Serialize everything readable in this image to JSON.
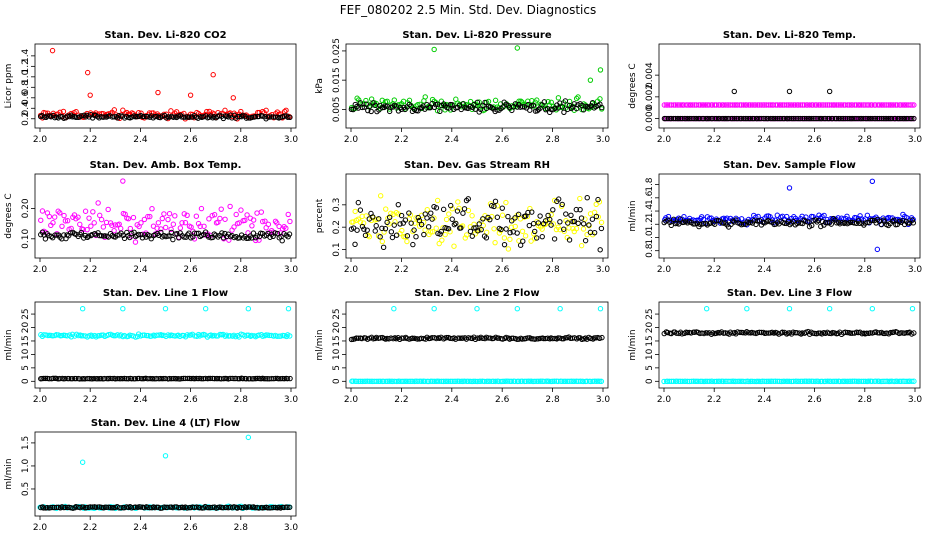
{
  "figure_title": "FEF_080202  2.5 Min. Std. Dev. Diagnostics",
  "colors": {
    "black": "#000000",
    "red": "#ff0000",
    "green": "#00cc00",
    "magenta": "#ff00ff",
    "yellow": "#ffff00",
    "blue": "#0000ff",
    "cyan": "#00ffff"
  },
  "chart_data": [
    {
      "type": "scatter",
      "title": "Stan. Dev. Li-820 CO2",
      "ylabel": "Licor ppm",
      "xlim": [
        2.0,
        3.0
      ],
      "ylim": [
        0.1,
        1.55
      ],
      "xticks": [
        "2.0",
        "2.2",
        "2.4",
        "2.6",
        "2.8",
        "3.0"
      ],
      "yticks": [
        "0.2",
        "0.4",
        "0.6",
        "0.8",
        "1.0",
        "1.2",
        "1.4"
      ],
      "series": [
        {
          "name": "secondary",
          "color": "red",
          "level": 0.28,
          "spread": 0.08,
          "outliers": [
            [
              2.05,
              1.5
            ],
            [
              2.19,
              1.08
            ],
            [
              2.69,
              1.04
            ],
            [
              2.2,
              0.65
            ],
            [
              2.47,
              0.7
            ],
            [
              2.6,
              0.65
            ],
            [
              2.77,
              0.6
            ]
          ]
        },
        {
          "name": "primary",
          "color": "black",
          "level": 0.24,
          "spread": 0.03,
          "outliers": []
        }
      ]
    },
    {
      "type": "scatter",
      "title": "Stan. Dev. Li-820 Pressure",
      "ylabel": "kPa",
      "xlim": [
        2.0,
        3.0
      ],
      "ylim": [
        0.0,
        0.026
      ],
      "xticks": [
        "2.0",
        "2.2",
        "2.4",
        "2.6",
        "2.8",
        "3.0"
      ],
      "yticks": [
        "0.005",
        "0.015",
        "0.025"
      ],
      "series": [
        {
          "name": "secondary",
          "color": "green",
          "level": 0.0065,
          "spread": 0.0022,
          "outliers": [
            [
              2.33,
              0.0255
            ],
            [
              2.66,
              0.026
            ],
            [
              2.95,
              0.015
            ],
            [
              2.99,
              0.0185
            ]
          ]
        },
        {
          "name": "primary",
          "color": "black",
          "level": 0.0058,
          "spread": 0.0015,
          "outliers": []
        }
      ]
    },
    {
      "type": "scatter",
      "title": "Stan. Dev. Li-820 Temp.",
      "ylabel": "degrees C",
      "xlim": [
        2.0,
        3.0
      ],
      "ylim": [
        -0.0005,
        0.0065
      ],
      "xticks": [
        "2.0",
        "2.2",
        "2.4",
        "2.6",
        "2.8",
        "3.0"
      ],
      "yticks": [
        "0.000",
        "0.002",
        "0.004"
      ],
      "series": [
        {
          "name": "secondary",
          "color": "magenta",
          "level": 0.0,
          "spread": 0.0,
          "outliers": []
        },
        {
          "name": "secondary-mid",
          "color": "magenta",
          "level": 0.00125,
          "spread": 0.0,
          "outliers": []
        },
        {
          "name": "primary",
          "color": "black",
          "level": 0.0,
          "spread": 0.0,
          "outliers": [
            [
              2.28,
              0.0025
            ],
            [
              2.5,
              0.0025
            ],
            [
              2.66,
              0.0025
            ]
          ]
        }
      ]
    },
    {
      "type": "scatter",
      "title": "Stan. Dev. Amb. Box Temp.",
      "ylabel": "degrees C",
      "xlim": [
        2.0,
        3.0
      ],
      "ylim": [
        0.05,
        0.3
      ],
      "xticks": [
        "2.0",
        "2.2",
        "2.4",
        "2.6",
        "2.8",
        "3.0"
      ],
      "yticks": [
        "0.10",
        "0.20"
      ],
      "series": [
        {
          "name": "secondary",
          "color": "magenta",
          "level": 0.15,
          "spread": 0.05,
          "outliers": [
            [
              2.33,
              0.29
            ]
          ]
        },
        {
          "name": "primary",
          "color": "black",
          "level": 0.11,
          "spread": 0.012,
          "outliers": []
        }
      ]
    },
    {
      "type": "scatter",
      "title": "Stan. Dev. Gas Stream RH",
      "ylabel": "percent",
      "xlim": [
        2.0,
        3.0
      ],
      "ylim": [
        0.08,
        0.42
      ],
      "xticks": [
        "2.0",
        "2.2",
        "2.4",
        "2.6",
        "2.8",
        "3.0"
      ],
      "yticks": [
        "0.1",
        "0.2",
        "0.3"
      ],
      "series": [
        {
          "name": "secondary",
          "color": "yellow",
          "level": 0.22,
          "spread": 0.1,
          "outliers": []
        },
        {
          "name": "primary",
          "color": "black",
          "level": 0.22,
          "spread": 0.1,
          "outliers": []
        }
      ]
    },
    {
      "type": "scatter",
      "title": "Stan. Dev. Sample Flow",
      "ylabel": "ml/min",
      "xlim": [
        2.0,
        3.0
      ],
      "ylim": [
        0.75,
        1.9
      ],
      "xticks": [
        "2.0",
        "2.2",
        "2.4",
        "2.6",
        "2.8",
        "3.0"
      ],
      "yticks": [
        "0.8",
        "1.0",
        "1.2",
        "1.4",
        "1.6",
        "1.8"
      ],
      "series": [
        {
          "name": "secondary",
          "color": "blue",
          "level": 1.28,
          "spread": 0.07,
          "outliers": [
            [
              2.5,
              1.75
            ],
            [
              2.83,
              1.85
            ],
            [
              2.85,
              0.82
            ]
          ]
        },
        {
          "name": "primary",
          "color": "black",
          "level": 1.22,
          "spread": 0.05,
          "outliers": []
        }
      ]
    },
    {
      "type": "scatter",
      "title": "Stan. Dev. Line 1 Flow",
      "ylabel": "ml/min",
      "xlim": [
        2.0,
        3.0
      ],
      "ylim": [
        -1,
        28
      ],
      "xticks": [
        "2.0",
        "2.2",
        "2.4",
        "2.6",
        "2.8",
        "3.0"
      ],
      "yticks": [
        "0",
        "5",
        "10",
        "15",
        "20",
        "25"
      ],
      "series": [
        {
          "name": "secondary",
          "color": "cyan",
          "level": 17,
          "spread": 0.5,
          "outliers": [
            [
              2.17,
              27
            ],
            [
              2.33,
              27
            ],
            [
              2.5,
              27
            ],
            [
              2.66,
              27
            ],
            [
              2.83,
              27
            ],
            [
              2.99,
              27
            ]
          ]
        },
        {
          "name": "primary",
          "color": "black",
          "level": 1,
          "spread": 0.1,
          "outliers": []
        }
      ]
    },
    {
      "type": "scatter",
      "title": "Stan. Dev. Line 2 Flow",
      "ylabel": "ml/min",
      "xlim": [
        2.0,
        3.0
      ],
      "ylim": [
        -1,
        28
      ],
      "xticks": [
        "2.0",
        "2.2",
        "2.4",
        "2.6",
        "2.8",
        "3.0"
      ],
      "yticks": [
        "0",
        "5",
        "10",
        "15",
        "20",
        "25"
      ],
      "series": [
        {
          "name": "secondary",
          "color": "cyan",
          "level": 0,
          "spread": 0.05,
          "outliers": [
            [
              2.17,
              27
            ],
            [
              2.33,
              27
            ],
            [
              2.5,
              27
            ],
            [
              2.66,
              27
            ],
            [
              2.83,
              27
            ],
            [
              2.99,
              27
            ]
          ]
        },
        {
          "name": "primary",
          "color": "black",
          "level": 16,
          "spread": 0.4,
          "outliers": []
        }
      ]
    },
    {
      "type": "scatter",
      "title": "Stan. Dev. Line 3 Flow",
      "ylabel": "ml/min",
      "xlim": [
        2.0,
        3.0
      ],
      "ylim": [
        -1,
        28
      ],
      "xticks": [
        "2.0",
        "2.2",
        "2.4",
        "2.6",
        "2.8",
        "3.0"
      ],
      "yticks": [
        "0",
        "5",
        "10",
        "15",
        "20",
        "25"
      ],
      "series": [
        {
          "name": "secondary",
          "color": "cyan",
          "level": 0,
          "spread": 0.05,
          "outliers": [
            [
              2.17,
              27
            ],
            [
              2.33,
              27
            ],
            [
              2.5,
              27
            ],
            [
              2.66,
              27
            ],
            [
              2.83,
              27
            ],
            [
              2.99,
              27
            ]
          ]
        },
        {
          "name": "primary",
          "color": "black",
          "level": 18,
          "spread": 0.4,
          "outliers": []
        }
      ]
    },
    {
      "type": "scatter",
      "title": "Stan. Dev. Line 4 (LT) Flow",
      "ylabel": "ml/min",
      "xlim": [
        2.0,
        3.0
      ],
      "ylim": [
        0.0,
        1.65
      ],
      "xticks": [
        "2.0",
        "2.2",
        "2.4",
        "2.6",
        "2.8",
        "3.0"
      ],
      "yticks": [
        "0.5",
        "1.0",
        "1.5"
      ],
      "series": [
        {
          "name": "secondary",
          "color": "cyan",
          "level": 0.1,
          "spread": 0.02,
          "outliers": [
            [
              2.17,
              1.08
            ],
            [
              2.5,
              1.22
            ],
            [
              2.83,
              1.62
            ]
          ]
        },
        {
          "name": "primary",
          "color": "black",
          "level": 0.1,
          "spread": 0.015,
          "outliers": []
        }
      ]
    }
  ]
}
